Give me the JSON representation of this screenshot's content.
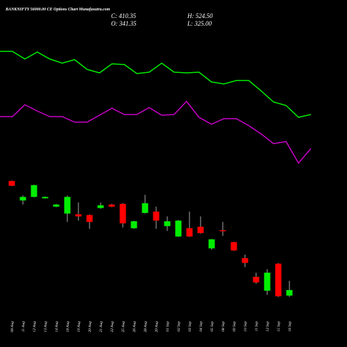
{
  "chart_data": {
    "type": "candlestick",
    "title": "BANKNIFTY 56000.00 CE Options Chart Munafasutra.com",
    "ohlc_labels": [
      "C: 410.35",
      "H: 524.50",
      "O: 341.35",
      "L: 325.00"
    ],
    "categories": [
      "08 Aug",
      "11 Aug",
      "12 Aug",
      "13 Aug",
      "14 Aug",
      "18 Aug",
      "19 Aug",
      "20 Aug",
      "21 Aug",
      "22 Aug",
      "25 Aug",
      "26 Aug",
      "28 Aug",
      "29 Aug",
      "01 Sep",
      "02 Sep",
      "03 Sep",
      "04 Sep",
      "05 Sep",
      "08 Sep",
      "09 Sep",
      "10 Sep",
      "11 Sep",
      "12 Sep",
      "15 Sep",
      "16 Sep"
    ],
    "open": [
      1765,
      1523,
      1567,
      1550,
      1446,
      1360,
      1351,
      1342,
      1429,
      1472,
      1480,
      1178,
      1368,
      1385,
      1204,
      1075,
      1178,
      1196,
      928,
      1153,
      1006,
      807,
      574,
      402,
      738,
      341.35
    ],
    "high": [
      1770,
      1584,
      1720,
      1572,
      1480,
      1584,
      1498,
      1350,
      1498,
      1480,
      1490,
      1270,
      1593,
      1446,
      1325,
      1280,
      1385,
      1325,
      1045,
      1256,
      1010,
      850,
      626,
      669,
      745,
      524.5
    ],
    "low": [
      1700,
      1472,
      1560,
      1545,
      1440,
      1256,
      1273,
      1170,
      1420,
      1440,
      1187,
      1170,
      1360,
      1170,
      1144,
      1070,
      1070,
      1110,
      911,
      1083,
      898,
      695,
      488,
      350,
      325,
      325
    ],
    "close": [
      1705,
      1567,
      1713,
      1567,
      1472,
      1567,
      1325,
      1256,
      1463,
      1446,
      1239,
      1265,
      1489,
      1273,
      1265,
      1273,
      1075,
      1118,
      1040,
      1144,
      902,
      747,
      505,
      626,
      333,
      410.35
    ],
    "up_color": "#00ee00",
    "down_color": "#ff0000",
    "wick_color": "#aaaaaa",
    "ylim": [
      0,
      1780
    ],
    "y2lim": [
      0,
      200
    ],
    "series": [
      {
        "color": "#00ee00",
        "axis": "y2",
        "values": [
          186,
          186,
          175,
          185,
          175,
          169,
          174,
          160,
          155,
          168,
          167,
          154,
          156,
          169,
          156,
          155,
          156,
          142,
          139,
          144,
          144,
          129,
          113,
          108,
          91,
          95
        ]
      },
      {
        "color": "#cc00cc",
        "axis": "y2",
        "values": [
          92,
          92,
          109,
          100,
          92,
          92,
          84,
          84,
          94,
          104,
          95,
          95,
          105,
          94,
          95,
          114,
          91,
          81,
          89,
          89,
          79,
          67,
          53,
          56,
          25,
          46
        ]
      }
    ]
  }
}
